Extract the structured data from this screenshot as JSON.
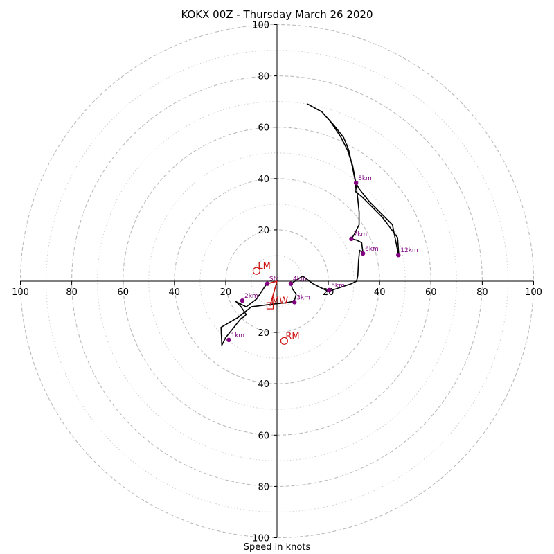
{
  "chart_data": {
    "type": "hodograph",
    "title": "KOKX 00Z - Thursday March 26 2020",
    "xlabel": "Speed in knots",
    "ring_labels": [
      "20",
      "40",
      "60",
      "80",
      "100"
    ],
    "axis_range": [
      -100,
      100
    ],
    "rings_major": [
      20,
      40,
      60,
      80,
      100
    ],
    "rings_minor": [
      10,
      30,
      50,
      70,
      90
    ],
    "grid": true,
    "colors": {
      "hodograph": "#000000",
      "points": "#800080",
      "storm_motion": "#cc1111",
      "grid": "#bbbbbb"
    },
    "hodograph_trace": [
      [
        -4,
        -1
      ],
      [
        -6,
        -4
      ],
      [
        -8,
        -7
      ],
      [
        -12,
        -10
      ],
      [
        -16,
        -8
      ],
      [
        -14,
        -10
      ],
      [
        -12,
        -13
      ],
      [
        -13,
        -14
      ],
      [
        -14,
        -14.5
      ],
      [
        -20,
        -22
      ],
      [
        -21,
        -24
      ],
      [
        -21.5,
        -25
      ],
      [
        -21.8,
        -18
      ],
      [
        -15,
        -14
      ],
      [
        -10,
        -10
      ],
      [
        -6,
        -9.5
      ],
      [
        -2,
        -9
      ],
      [
        3,
        -8.5
      ],
      [
        6,
        -8
      ],
      [
        7,
        -7
      ],
      [
        7.5,
        -5
      ],
      [
        6,
        -3
      ],
      [
        5.5,
        -1
      ],
      [
        7,
        0
      ],
      [
        10,
        2
      ],
      [
        14,
        -1
      ],
      [
        18,
        -3
      ],
      [
        20,
        -4
      ],
      [
        23,
        -3
      ],
      [
        26,
        -2
      ],
      [
        29,
        -1
      ],
      [
        31,
        0
      ],
      [
        31.5,
        2
      ],
      [
        31.8,
        8
      ],
      [
        32.2,
        12
      ],
      [
        33.5,
        11
      ],
      [
        33,
        15
      ],
      [
        31,
        16
      ],
      [
        29,
        16.5
      ],
      [
        30,
        18
      ],
      [
        32,
        22
      ],
      [
        32,
        27
      ],
      [
        31.5,
        32
      ],
      [
        31,
        36
      ],
      [
        30.5,
        39
      ],
      [
        30.5,
        35
      ],
      [
        33,
        33
      ],
      [
        37,
        29
      ],
      [
        41,
        25
      ],
      [
        44,
        21
      ],
      [
        47,
        17
      ],
      [
        47.5,
        10
      ],
      [
        47.2,
        11
      ],
      [
        45,
        22
      ],
      [
        40,
        27
      ],
      [
        36,
        31
      ],
      [
        32,
        36
      ],
      [
        30.7,
        38.5
      ],
      [
        29.5,
        45
      ],
      [
        27.5,
        51
      ],
      [
        25,
        56
      ],
      [
        21,
        62
      ],
      [
        17.5,
        66
      ],
      [
        12,
        69
      ],
      [
        17.5,
        66
      ],
      [
        22,
        61
      ],
      [
        26,
        56
      ],
      [
        28,
        51
      ],
      [
        29.5,
        44
      ],
      [
        30.5,
        39
      ]
    ],
    "height_points": [
      {
        "label": "Sfc",
        "x": -3.8,
        "y": -1.0
      },
      {
        "label": "1km",
        "x": -18.8,
        "y": -22.9
      },
      {
        "label": "2km",
        "x": -13.5,
        "y": -7.6
      },
      {
        "label": "3km",
        "x": 6.8,
        "y": -8.2
      },
      {
        "label": "4km",
        "x": 5.4,
        "y": -1.0
      },
      {
        "label": "5km",
        "x": 20.3,
        "y": -3.5
      },
      {
        "label": "6km",
        "x": 33.5,
        "y": 10.8
      },
      {
        "label": "7km",
        "x": 29.0,
        "y": 16.5
      },
      {
        "label": "8km",
        "x": 30.8,
        "y": 38.3
      },
      {
        "label": "12km",
        "x": 47.3,
        "y": 10.2
      }
    ],
    "storm_motion": [
      {
        "label": "LM",
        "x": -8,
        "y": 4,
        "marker": "circle"
      },
      {
        "label": "RM",
        "x": 2.8,
        "y": -23.3,
        "marker": "circle"
      },
      {
        "label": "MW",
        "x": -2.7,
        "y": -9.6,
        "marker": "square"
      }
    ],
    "shear_vector": {
      "from": [
        -3.8,
        -1.0
      ],
      "to": [
        0,
        0
      ]
    }
  }
}
